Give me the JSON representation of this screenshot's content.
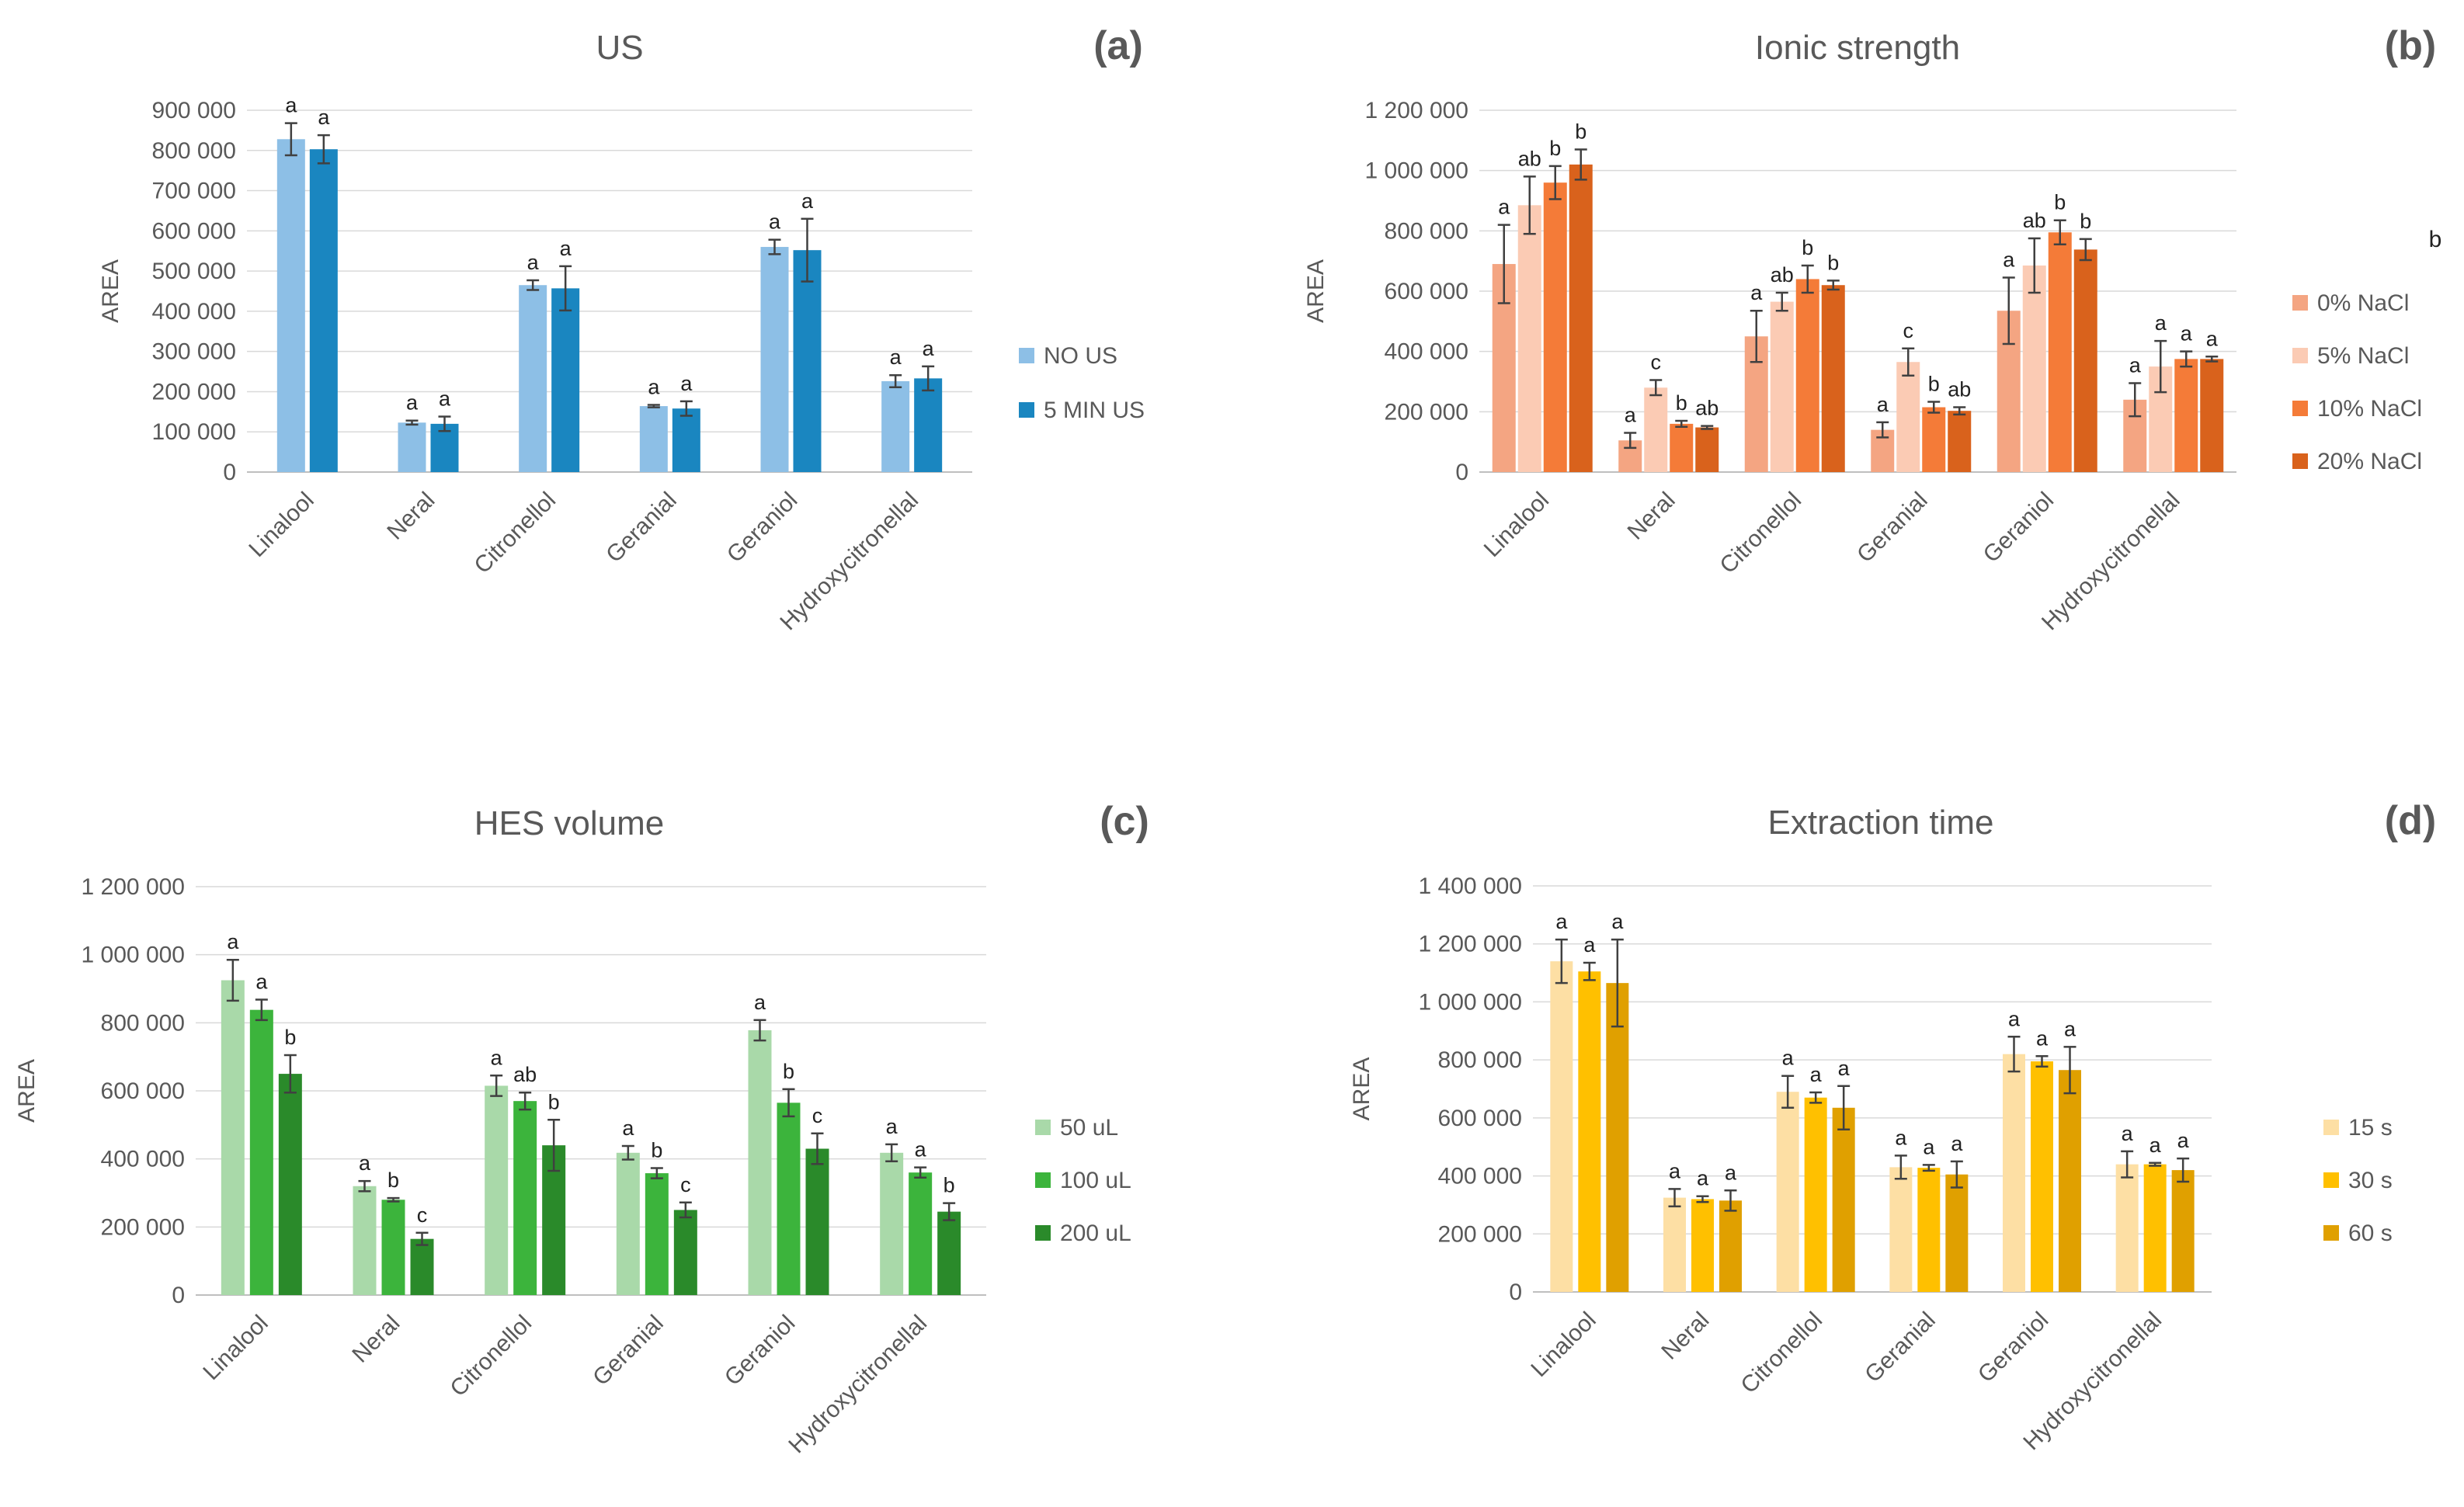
{
  "figure": {
    "stray_label": "b"
  },
  "chart_data": [
    {
      "id": "a",
      "panel_label": "(a)",
      "type": "bar",
      "title": "US",
      "ylabel": "AREA",
      "xlabel": "",
      "ylim": [
        0,
        900000
      ],
      "yticks": [
        0,
        100000,
        200000,
        300000,
        400000,
        500000,
        600000,
        700000,
        800000,
        900000
      ],
      "ytick_labels": [
        "0",
        "100 000",
        "200 000",
        "300 000",
        "400 000",
        "500 000",
        "600 000",
        "700 000",
        "800 000",
        "900 000"
      ],
      "grid": true,
      "legend_position": "right",
      "categories": [
        "Linalool",
        "Neral",
        "Citronellol",
        "Geranial",
        "Geraniol",
        "Hydroxycitronellal"
      ],
      "series": [
        {
          "name": "NO US",
          "color": "#8DBFE6",
          "values": [
            828000,
            123000,
            465000,
            164000,
            560000,
            226000
          ],
          "errors": [
            40000,
            5000,
            12000,
            3000,
            18000,
            15000
          ],
          "letters": [
            "a",
            "a",
            "a",
            "a",
            "a",
            "a"
          ]
        },
        {
          "name": "5 MIN US",
          "color": "#1A86C0",
          "values": [
            803000,
            120000,
            457000,
            158000,
            552000,
            233000
          ],
          "errors": [
            35000,
            18000,
            55000,
            18000,
            78000,
            30000
          ],
          "letters": [
            "a",
            "a",
            "a",
            "a",
            "a",
            "a"
          ]
        }
      ]
    },
    {
      "id": "b",
      "panel_label": "(b)",
      "type": "bar",
      "title": "Ionic strength",
      "ylabel": "AREA",
      "xlabel": "",
      "ylim": [
        0,
        1200000
      ],
      "yticks": [
        0,
        200000,
        400000,
        600000,
        800000,
        1000000,
        1200000
      ],
      "ytick_labels": [
        "0",
        "200 000",
        "400 000",
        "600 000",
        "800 000",
        "1 000 000",
        "1 200 000"
      ],
      "grid": true,
      "legend_position": "right",
      "categories": [
        "Linalool",
        "Neral",
        "Citronellol",
        "Geranial",
        "Geraniol",
        "Hydroxycitronellal"
      ],
      "series": [
        {
          "name": "0% NaCl",
          "color": "#F4A582",
          "values": [
            690000,
            105000,
            450000,
            140000,
            535000,
            240000
          ],
          "errors": [
            130000,
            25000,
            85000,
            25000,
            110000,
            55000
          ],
          "letters": [
            "a",
            "a",
            "a",
            "a",
            "a",
            "a"
          ]
        },
        {
          "name": "5% NaCl",
          "color": "#FBCBB4",
          "values": [
            885000,
            280000,
            565000,
            365000,
            685000,
            350000
          ],
          "errors": [
            95000,
            25000,
            30000,
            45000,
            90000,
            85000
          ],
          "letters": [
            "ab",
            "c",
            "ab",
            "c",
            "ab",
            "a"
          ]
        },
        {
          "name": "10% NaCl",
          "color": "#F47B38",
          "values": [
            960000,
            160000,
            640000,
            215000,
            795000,
            375000
          ],
          "errors": [
            55000,
            10000,
            45000,
            18000,
            40000,
            25000
          ],
          "letters": [
            "b",
            "b",
            "b",
            "b",
            "b",
            "a"
          ]
        },
        {
          "name": "20% NaCl",
          "color": "#D9621C",
          "values": [
            1020000,
            148000,
            620000,
            203000,
            738000,
            375000
          ],
          "errors": [
            50000,
            5000,
            15000,
            12000,
            35000,
            8000
          ],
          "letters": [
            "b",
            "ab",
            "b",
            "ab",
            "b",
            "a"
          ]
        }
      ]
    },
    {
      "id": "c",
      "panel_label": "(c)",
      "type": "bar",
      "title": "HES volume",
      "ylabel": "AREA",
      "xlabel": "",
      "ylim": [
        0,
        1200000
      ],
      "yticks": [
        0,
        200000,
        400000,
        600000,
        800000,
        1000000,
        1200000
      ],
      "ytick_labels": [
        "0",
        "200 000",
        "400 000",
        "600 000",
        "800 000",
        "1 000 000",
        "1 200 000"
      ],
      "grid": true,
      "legend_position": "right",
      "categories": [
        "Linalool",
        "Neral",
        "Citronellol",
        "Geranial",
        "Geraniol",
        "Hydroxycitronellal"
      ],
      "series": [
        {
          "name": "50 uL",
          "color": "#A9D9A9",
          "values": [
            925000,
            320000,
            615000,
            418000,
            778000,
            418000
          ],
          "errors": [
            60000,
            15000,
            30000,
            20000,
            30000,
            25000
          ],
          "letters": [
            "a",
            "a",
            "a",
            "a",
            "a",
            "a"
          ]
        },
        {
          "name": "100 uL",
          "color": "#3CB43C",
          "values": [
            838000,
            280000,
            570000,
            358000,
            565000,
            360000
          ],
          "errors": [
            30000,
            5000,
            25000,
            15000,
            40000,
            15000
          ],
          "letters": [
            "a",
            "b",
            "ab",
            "b",
            "b",
            "a"
          ]
        },
        {
          "name": "200 uL",
          "color": "#2A8A2A",
          "values": [
            650000,
            165000,
            440000,
            250000,
            430000,
            245000
          ],
          "errors": [
            55000,
            18000,
            75000,
            22000,
            45000,
            25000
          ],
          "letters": [
            "b",
            "c",
            "b",
            "c",
            "c",
            "b"
          ]
        }
      ]
    },
    {
      "id": "d",
      "panel_label": "(d)",
      "type": "bar",
      "title": "Extraction time",
      "ylabel": "AREA",
      "xlabel": "",
      "ylim": [
        0,
        1400000
      ],
      "yticks": [
        0,
        200000,
        400000,
        600000,
        800000,
        1000000,
        1200000,
        1400000
      ],
      "ytick_labels": [
        "0",
        "200 000",
        "400 000",
        "600 000",
        "800 000",
        "1 000 000",
        "1 200 000",
        "1 400 000"
      ],
      "grid": true,
      "legend_position": "right",
      "categories": [
        "Linalool",
        "Neral",
        "Citronellol",
        "Geranial",
        "Geraniol",
        "Hydroxycitronellal"
      ],
      "series": [
        {
          "name": "15 s",
          "color": "#FDDFA4",
          "values": [
            1140000,
            325000,
            690000,
            430000,
            820000,
            440000
          ],
          "errors": [
            75000,
            30000,
            55000,
            40000,
            60000,
            45000
          ],
          "letters": [
            "a",
            "a",
            "a",
            "a",
            "a",
            "a"
          ]
        },
        {
          "name": "30 s",
          "color": "#FFC000",
          "values": [
            1105000,
            320000,
            670000,
            428000,
            795000,
            440000
          ],
          "errors": [
            30000,
            10000,
            18000,
            10000,
            18000,
            5000
          ],
          "letters": [
            "a",
            "a",
            "a",
            "a",
            "a",
            "a"
          ]
        },
        {
          "name": "60 s",
          "color": "#E0A000",
          "values": [
            1065000,
            315000,
            635000,
            405000,
            765000,
            420000
          ],
          "errors": [
            150000,
            35000,
            75000,
            45000,
            80000,
            40000
          ],
          "letters": [
            "a",
            "a",
            "a",
            "a",
            "a",
            "a"
          ]
        }
      ]
    }
  ]
}
